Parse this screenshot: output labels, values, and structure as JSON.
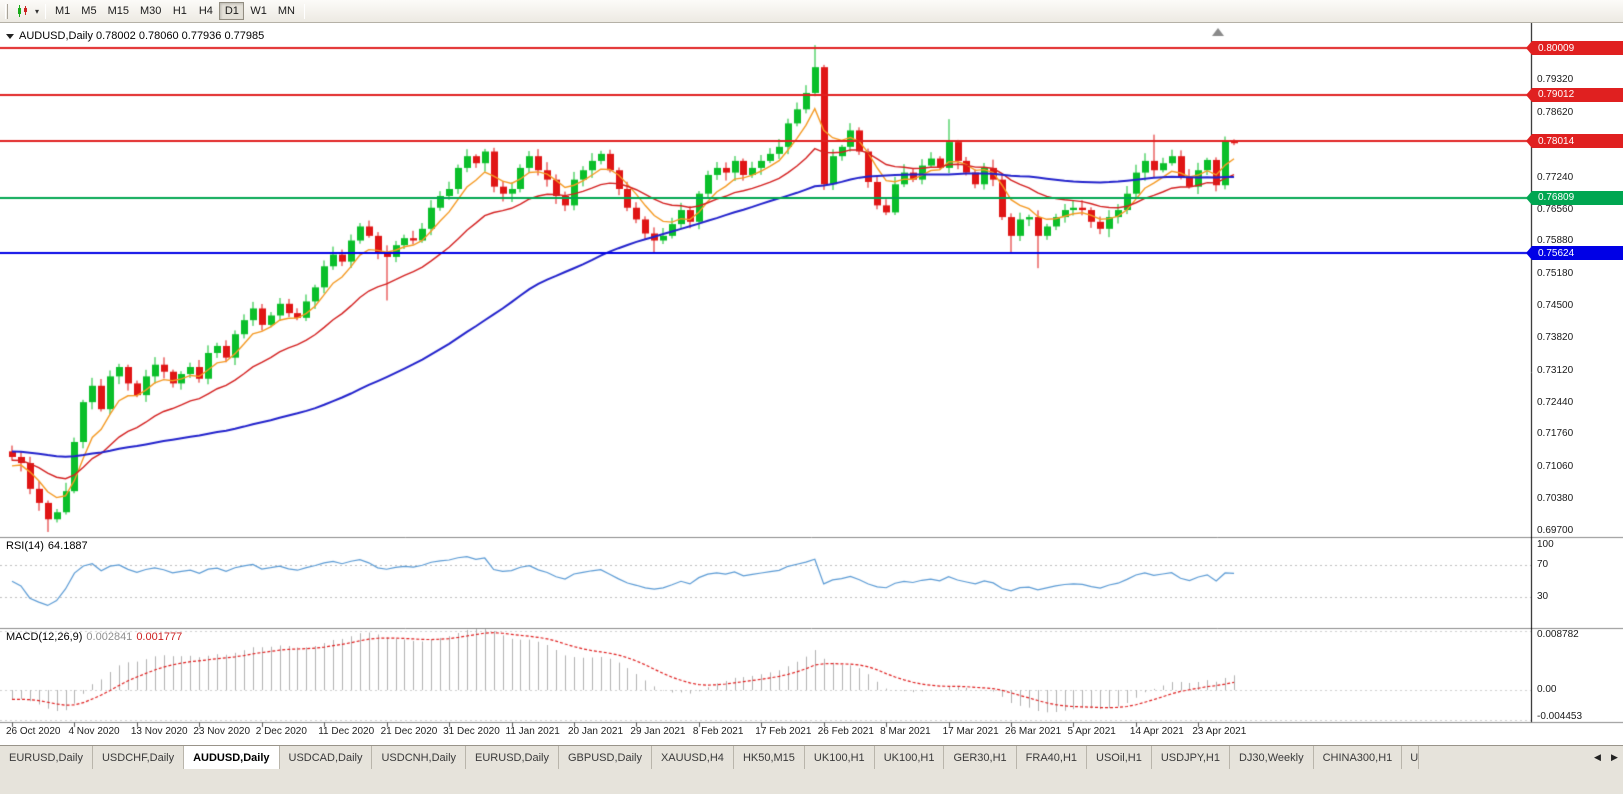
{
  "toolbar": {
    "timeframes": [
      "M1",
      "M5",
      "M15",
      "M30",
      "H1",
      "H4",
      "D1",
      "W1",
      "MN"
    ],
    "active_timeframe": "D1",
    "dropdown_caret": "▾"
  },
  "chart": {
    "title": "AUDUSD,Daily 0.78002 0.78060 0.77936 0.77985"
  },
  "indicators": {
    "rsi": {
      "name": "RSI(14)",
      "value": "64.1887",
      "levels": [
        "100",
        "70",
        "30"
      ]
    },
    "macd": {
      "name": "MACD(12,26,9)",
      "value": "0.002841",
      "signal_value": "0.001777",
      "axis": [
        "0.008782",
        "0.00",
        "-0.004453"
      ]
    }
  },
  "chart_data": {
    "type": "candlestick",
    "symbol": "AUDUSD",
    "period": "Daily",
    "ohlc_today": {
      "open": "0.78002",
      "high": "0.78060",
      "low": "0.77936",
      "close": "0.77985"
    },
    "x_labels": [
      "26 Oct 2020",
      "4 Nov 2020",
      "13 Nov 2020",
      "23 Nov 2020",
      "2 Dec 2020",
      "11 Dec 2020",
      "21 Dec 2020",
      "31 Dec 2020",
      "11 Jan 2021",
      "20 Jan 2021",
      "29 Jan 2021",
      "8 Feb 2021",
      "17 Feb 2021",
      "26 Feb 2021",
      "8 Mar 2021",
      "17 Mar 2021",
      "26 Mar 2021",
      "5 Apr 2021",
      "14 Apr 2021",
      "23 Apr 2021"
    ],
    "candles_per_x_label": 7,
    "price_scale": {
      "top": 0.80543,
      "bottom": 0.69572
    },
    "price_grid_labels": [
      "0.79320",
      "0.78620",
      "0.77240",
      "0.76560",
      "0.75880",
      "0.75180",
      "0.74500",
      "0.73820",
      "0.73120",
      "0.72440",
      "0.71760",
      "0.71060",
      "0.70380",
      "0.69700"
    ],
    "horizontal_lines": [
      {
        "price": 0.80009,
        "label": "0.80009",
        "color": "#e02020",
        "role": "resistance"
      },
      {
        "price": 0.79012,
        "label": "0.79012",
        "color": "#e02020",
        "role": "resistance"
      },
      {
        "price": 0.78014,
        "label": "0.78014",
        "color": "#e02020",
        "role": "resistance"
      },
      {
        "price": 0.76809,
        "label": "0.76809",
        "color": "#00a651",
        "role": "support"
      },
      {
        "price": 0.75624,
        "label": "0.75624",
        "color": "#0000e6",
        "role": "support"
      }
    ],
    "moving_averages": [
      {
        "period": 6,
        "method": "ema",
        "color": "#f59a23"
      },
      {
        "period": 18,
        "method": "ema",
        "color": "#d42020"
      },
      {
        "period": 52,
        "method": "sma",
        "color": "#2222cc"
      }
    ],
    "candles": {
      "up_color": "#0abf2a",
      "down_color": "#e01515",
      "first_open": 0.714,
      "closes": [
        0.7128,
        0.7115,
        0.706,
        0.703,
        0.6995,
        0.701,
        0.7055,
        0.716,
        0.7245,
        0.728,
        0.723,
        0.73,
        0.732,
        0.7285,
        0.726,
        0.73,
        0.7325,
        0.731,
        0.7285,
        0.7305,
        0.732,
        0.7295,
        0.735,
        0.7365,
        0.734,
        0.739,
        0.742,
        0.7445,
        0.741,
        0.743,
        0.7455,
        0.7435,
        0.7425,
        0.746,
        0.749,
        0.7535,
        0.756,
        0.7545,
        0.759,
        0.762,
        0.76,
        0.7565,
        0.7555,
        0.758,
        0.7595,
        0.759,
        0.7615,
        0.766,
        0.7685,
        0.77,
        0.7745,
        0.777,
        0.7755,
        0.778,
        0.7705,
        0.769,
        0.77,
        0.7745,
        0.777,
        0.774,
        0.772,
        0.7685,
        0.7665,
        0.772,
        0.774,
        0.776,
        0.7775,
        0.774,
        0.77,
        0.766,
        0.7635,
        0.7605,
        0.759,
        0.76,
        0.7625,
        0.7655,
        0.763,
        0.769,
        0.773,
        0.7745,
        0.7735,
        0.776,
        0.773,
        0.7745,
        0.776,
        0.7775,
        0.779,
        0.784,
        0.787,
        0.7905,
        0.796,
        0.771,
        0.777,
        0.779,
        0.7825,
        0.778,
        0.7715,
        0.7665,
        0.765,
        0.771,
        0.7735,
        0.772,
        0.775,
        0.7765,
        0.7745,
        0.78,
        0.776,
        0.7735,
        0.771,
        0.7745,
        0.772,
        0.764,
        0.76,
        0.7635,
        0.764,
        0.76,
        0.762,
        0.764,
        0.7655,
        0.766,
        0.7655,
        0.763,
        0.7615,
        0.764,
        0.7655,
        0.769,
        0.7735,
        0.776,
        0.774,
        0.7755,
        0.777,
        0.7725,
        0.7705,
        0.774,
        0.7762,
        0.7708,
        0.7803,
        0.77985
      ],
      "overrides": {
        "4": {
          "low": 0.6968
        },
        "42": {
          "low": 0.7462
        },
        "72": {
          "low": 0.7565
        },
        "90": {
          "high": 0.8007
        },
        "91": {
          "low": 0.7698
        },
        "105": {
          "high": 0.7849
        },
        "112": {
          "low": 0.7564
        },
        "115": {
          "low": 0.7531
        },
        "128": {
          "high": 0.7816
        },
        "135": {
          "low": 0.7695
        },
        "136": {
          "high": 0.7812
        },
        "137": {
          "open": 0.78002,
          "high": 0.7806,
          "low": 0.77936,
          "close": 0.77985
        }
      }
    },
    "rsi_color": "#5b9bd5",
    "rsi_levels_dashed": [
      70,
      30
    ],
    "macd": {
      "hist_color": "#b2b2b2",
      "signal_color": "#e02020",
      "max": 0.008782,
      "min": -0.004453
    }
  },
  "tabs": {
    "items": [
      "EURUSD,Daily",
      "USDCHF,Daily",
      "AUDUSD,Daily",
      "USDCAD,Daily",
      "USDCNH,Daily",
      "EURUSD,Daily",
      "GBPUSD,Daily",
      "XAUUSD,H4",
      "HK50,M15",
      "UK100,H1",
      "UK100,H1",
      "GER30,H1",
      "FRA40,H1",
      "USOil,H1",
      "USDJPY,H1",
      "DJ30,Weekly",
      "CHINA300,H1"
    ],
    "active_index": 2,
    "clipped_label": "U",
    "scroll_left": "◀",
    "scroll_right": "▶"
  }
}
